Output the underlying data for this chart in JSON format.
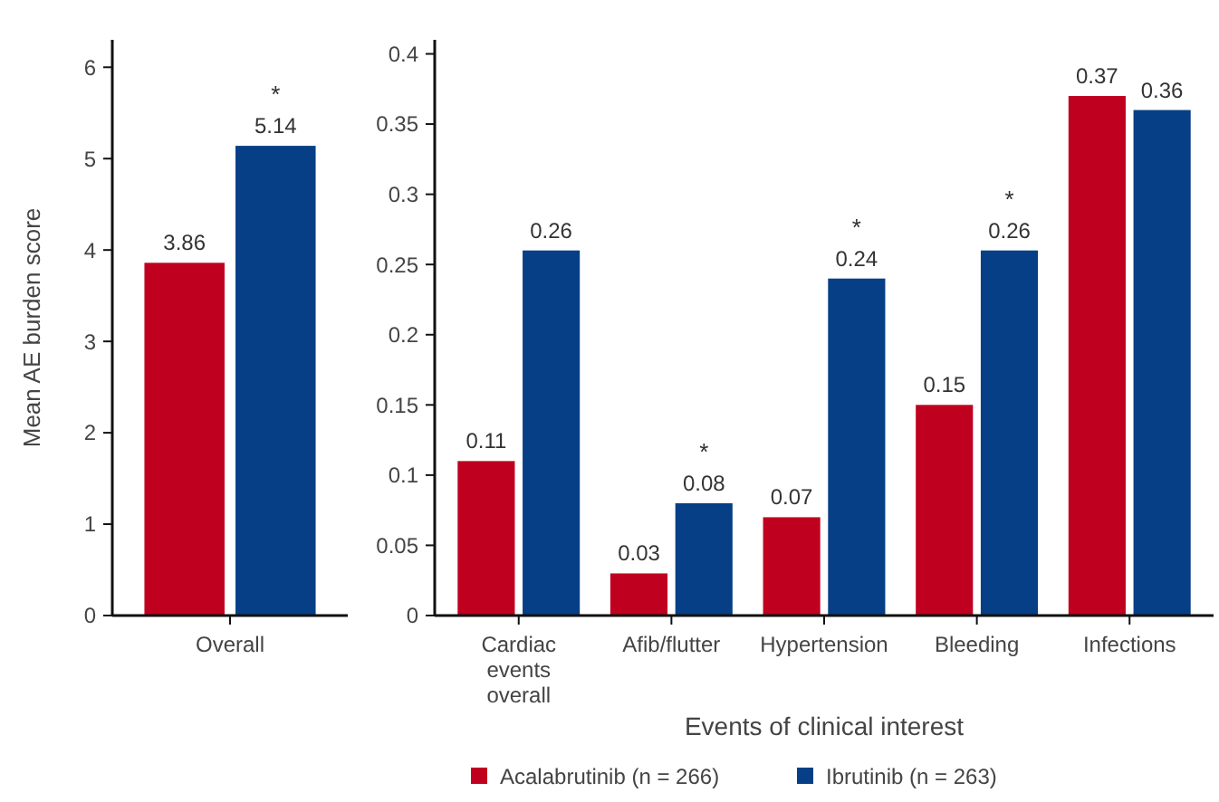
{
  "chart_data": [
    {
      "type": "bar",
      "ylabel": "Mean AE burden score",
      "categories": [
        "Overall"
      ],
      "series": [
        {
          "color": "#c0001f",
          "values": [
            3.86
          ]
        },
        {
          "color": "#063f85",
          "values": [
            5.14
          ]
        }
      ],
      "ylim": [
        0,
        6.3
      ],
      "yticks": [
        0,
        1,
        2,
        3,
        4,
        5,
        6
      ],
      "data_labels": true,
      "grid": false,
      "legend": false,
      "annotations": [
        {
          "text": "*",
          "x": "Overall",
          "y": 5.14
        }
      ]
    },
    {
      "type": "bar",
      "xlabel": "Events of clinical interest",
      "categories": [
        "Cardiac events overall",
        "Afib/flutter",
        "Hypertension",
        "Bleeding",
        "Infections"
      ],
      "series": [
        {
          "name": "Acalabrutinib (n = 266)",
          "color": "#c0001f",
          "values": [
            0.11,
            0.03,
            0.07,
            0.15,
            0.37
          ]
        },
        {
          "name": "Ibrutinib (n = 263)",
          "color": "#063f85",
          "values": [
            0.26,
            0.08,
            0.24,
            0.26,
            0.36
          ]
        }
      ],
      "ylim": [
        0,
        0.41
      ],
      "yticks": [
        0,
        0.05,
        0.1,
        0.15,
        0.2,
        0.25,
        0.3,
        0.35,
        0.4
      ],
      "data_labels": true,
      "grid": false,
      "legend": "bottom",
      "annotations": [
        {
          "text": "*",
          "x": "Afib/flutter",
          "y": 0.08
        },
        {
          "text": "*",
          "x": "Hypertension",
          "y": 0.24
        },
        {
          "text": "*",
          "x": "Bleeding",
          "y": 0.26
        }
      ]
    }
  ]
}
